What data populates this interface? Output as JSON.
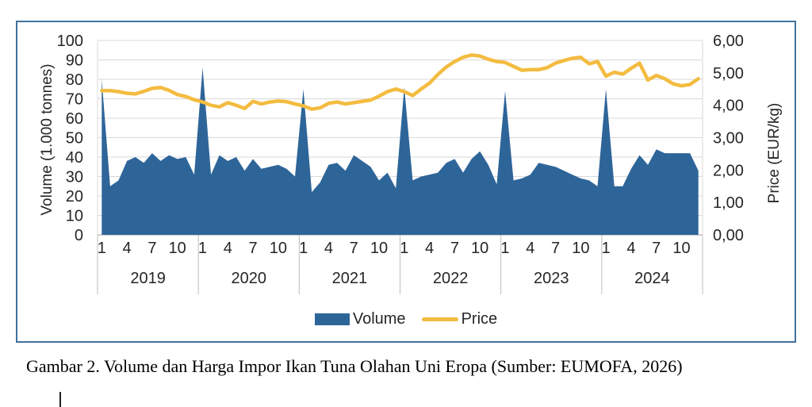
{
  "figure": {
    "caption": "Gambar 2. Volume dan Harga Impor Ikan Tuna Olahan Uni Eropa (Sumber: EUMOFA, 2026)"
  },
  "chart_data": {
    "type": "combo",
    "subtypes": [
      "area",
      "line"
    ],
    "title": "",
    "x_unit": "month",
    "years": [
      "2019",
      "2020",
      "2021",
      "2022",
      "2023",
      "2024"
    ],
    "month_tick_labels": [
      "1",
      "4",
      "7",
      "10"
    ],
    "month_tick_positions": [
      1,
      4,
      7,
      10
    ],
    "grid": true,
    "legend_position": "bottom",
    "y_left": {
      "title": "Volume (1.000 tonnes)",
      "min": 0,
      "max": 100,
      "ticks": [
        "0",
        "10",
        "20",
        "30",
        "40",
        "50",
        "60",
        "70",
        "80",
        "90",
        "100"
      ]
    },
    "y_right": {
      "title": "Price (EUR/kg)",
      "min": 0,
      "max": 6,
      "ticks": [
        "0,00",
        "1,00",
        "2,00",
        "3,00",
        "4,00",
        "5,00",
        "6,00"
      ]
    },
    "series": [
      {
        "name": "Volume",
        "type": "area",
        "axis": "left",
        "color": "#2E6599",
        "values": [
          80,
          25,
          28,
          38,
          40,
          37,
          42,
          38,
          41,
          39,
          40,
          31,
          86,
          31,
          41,
          38,
          40,
          33,
          39,
          34,
          35,
          36,
          34,
          30,
          75,
          22,
          27,
          36,
          37,
          33,
          41,
          38,
          35,
          28,
          32,
          24,
          76,
          28,
          30,
          31,
          32,
          37,
          39,
          32,
          39,
          43,
          36,
          26,
          74,
          28,
          29,
          31,
          37,
          36,
          35,
          33,
          31,
          29,
          28,
          25,
          75,
          25,
          25,
          34,
          41,
          36,
          44,
          42,
          42,
          42,
          42,
          33
        ]
      },
      {
        "name": "Price",
        "type": "line",
        "axis": "right",
        "color": "#F3BC40",
        "values": [
          4.45,
          4.45,
          4.42,
          4.37,
          4.35,
          4.43,
          4.52,
          4.55,
          4.46,
          4.33,
          4.27,
          4.17,
          4.1,
          4.0,
          3.95,
          4.08,
          4.0,
          3.9,
          4.12,
          4.04,
          4.1,
          4.13,
          4.11,
          4.04,
          3.98,
          3.88,
          3.92,
          4.06,
          4.1,
          4.04,
          4.08,
          4.12,
          4.16,
          4.28,
          4.42,
          4.5,
          4.42,
          4.3,
          4.5,
          4.68,
          4.95,
          5.18,
          5.35,
          5.48,
          5.55,
          5.52,
          5.42,
          5.35,
          5.32,
          5.2,
          5.08,
          5.1,
          5.1,
          5.16,
          5.3,
          5.38,
          5.45,
          5.48,
          5.28,
          5.35,
          4.9,
          5.02,
          4.96,
          5.14,
          5.3,
          4.78,
          4.92,
          4.82,
          4.66,
          4.6,
          4.64,
          4.82
        ]
      }
    ],
    "legend": [
      {
        "label": "Volume",
        "marker": "rect",
        "color": "#2E6599"
      },
      {
        "label": "Price",
        "marker": "line",
        "color": "#F3BC40"
      }
    ],
    "colors": {
      "area": "#2E6599",
      "line": "#F3BC40",
      "gridline": "#D9D9D9",
      "axis_line": "#BFBFBF",
      "frame_border": "#41719C",
      "text": "#262626"
    }
  }
}
